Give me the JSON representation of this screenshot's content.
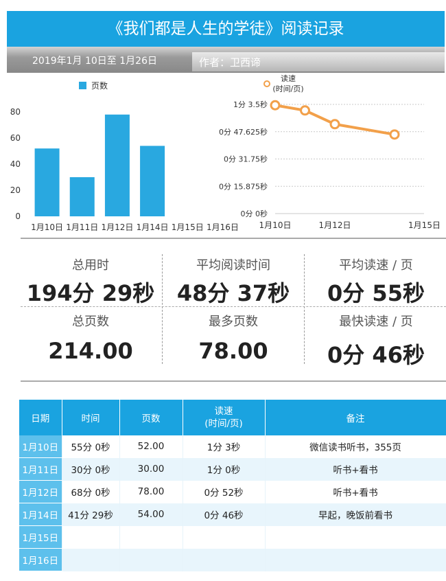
{
  "header": {
    "title": "《我们都是人生的学徒》阅读记录",
    "date_range": "2019年1月 10日至 1月26日",
    "author": "作者：卫西谛"
  },
  "colors": {
    "accent": "#1aa3e0",
    "bar": "#29a8e0",
    "line": "#f2a04a"
  },
  "chart_data": [
    {
      "type": "bar",
      "legend": "页数",
      "categories": [
        "1月10日",
        "1月11日",
        "1月12日",
        "1月14日",
        "1月15日",
        "1月16日"
      ],
      "values": [
        52,
        30,
        78,
        54,
        0,
        0
      ],
      "ylim": [
        0,
        80
      ],
      "yticks": [
        "0",
        "20",
        "40",
        "60",
        "80"
      ]
    },
    {
      "type": "line",
      "legend": "读速\n(时间/页)",
      "legend_lines": [
        "读速",
        "(时间/页)"
      ],
      "x": [
        "1月10日",
        "1月11日",
        "1月12日",
        "1月14日"
      ],
      "values_seconds": [
        63,
        60,
        52,
        46
      ],
      "xticks": [
        "1月10日",
        "1月12日",
        "1月15日"
      ],
      "yticks": [
        "0分 0秒",
        "0分 15.875秒",
        "0分 31.75秒",
        "0分 47.625秒",
        "1分 3.5秒"
      ]
    }
  ],
  "stats": {
    "total_time": {
      "label": "总用时",
      "value": "194分 29秒"
    },
    "avg_time": {
      "label": "平均阅读时间",
      "value": "48分 37秒"
    },
    "avg_speed": {
      "label": "平均读速 / 页",
      "value": "0分 55秒"
    },
    "total_pages": {
      "label": "总页数",
      "value": "214.00"
    },
    "max_pages": {
      "label": "最多页数",
      "value": "78.00"
    },
    "fastest_speed": {
      "label": "最快读速 / 页",
      "value": "0分 46秒"
    }
  },
  "table": {
    "headers": [
      "日期",
      "时间",
      "页数",
      "读速\n(时间/页)",
      "备注"
    ],
    "header_speed_lines": [
      "读速",
      "(时间/页)"
    ],
    "rows": [
      {
        "date": "1月10日",
        "time": "55分 0秒",
        "pages": "52.00",
        "speed": "1分 3秒",
        "note": "微信读书听书，355页"
      },
      {
        "date": "1月11日",
        "time": "30分 0秒",
        "pages": "30.00",
        "speed": "1分 0秒",
        "note": "听书+看书"
      },
      {
        "date": "1月12日",
        "time": "68分 0秒",
        "pages": "78.00",
        "speed": "0分 52秒",
        "note": "听书+看书"
      },
      {
        "date": "1月14日",
        "time": "41分 29秒",
        "pages": "54.00",
        "speed": "0分 46秒",
        "note": "早起，晚饭前看书"
      },
      {
        "date": "1月15日",
        "time": "",
        "pages": "",
        "speed": "",
        "note": ""
      },
      {
        "date": "1月16日",
        "time": "",
        "pages": "",
        "speed": "",
        "note": ""
      }
    ]
  }
}
